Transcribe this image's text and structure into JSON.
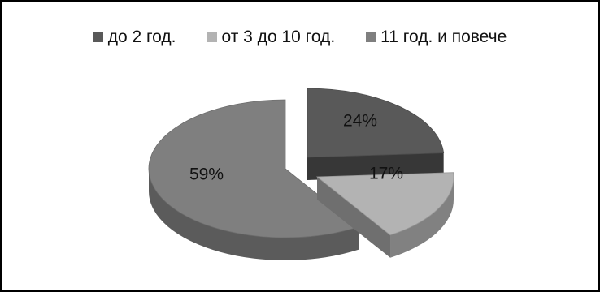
{
  "chart_data": {
    "type": "pie",
    "three_d": true,
    "exploded": true,
    "title": "",
    "categories": [
      "до 2 год.",
      "от 3 до 10 год.",
      "11 год. и повече"
    ],
    "values": [
      24,
      17,
      59
    ],
    "labels": [
      "24%",
      "17%",
      "59%"
    ],
    "colors": [
      "#595959",
      "#b3b3b3",
      "#7f7f7f"
    ],
    "legend_position": "top",
    "grid": false
  }
}
